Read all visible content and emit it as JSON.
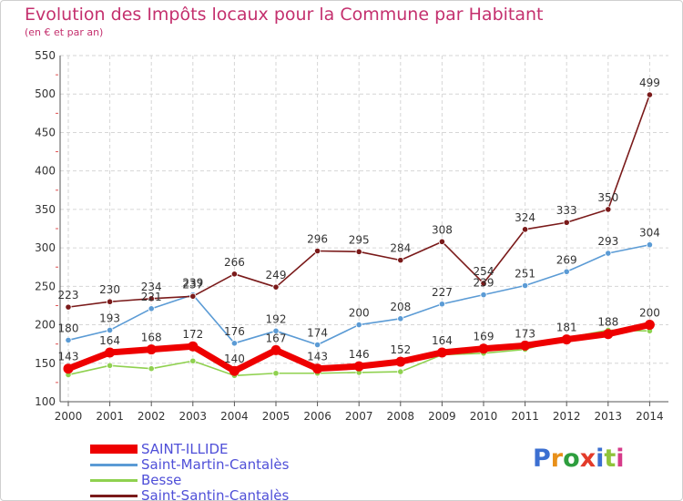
{
  "header": {
    "title": "Evolution des Impôts locaux pour la Commune par Habitant",
    "subtitle": "(en € et par an)"
  },
  "logo": {
    "text": "Proxiti",
    "colors": [
      "#3b6fd1",
      "#e8901a",
      "#2e9e3e",
      "#e33b2a",
      "#3b6fd1",
      "#8fc43b",
      "#d63b8a"
    ]
  },
  "chart_data": {
    "type": "line",
    "x": [
      2000,
      2001,
      2002,
      2003,
      2004,
      2005,
      2006,
      2007,
      2008,
      2009,
      2010,
      2011,
      2012,
      2013,
      2014
    ],
    "ylim": [
      100,
      550
    ],
    "yticks": [
      100,
      150,
      200,
      250,
      300,
      350,
      400,
      450,
      500,
      550
    ],
    "grid": true,
    "legend_position": "bottom-left",
    "series": [
      {
        "name": "SAINT-ILLIDE",
        "color": "#ee0000",
        "values": [
          143,
          164,
          168,
          172,
          140,
          167,
          143,
          146,
          152,
          164,
          169,
          173,
          181,
          188,
          200
        ],
        "labels_shown": true
      },
      {
        "name": "Saint-Martin-Cantalès",
        "color": "#5b9bd5",
        "values": [
          180,
          193,
          221,
          239,
          176,
          192,
          174,
          200,
          208,
          227,
          239,
          251,
          269,
          293,
          304
        ],
        "labels_shown": true
      },
      {
        "name": "Besse",
        "color": "#8fd14f",
        "values": [
          135,
          147,
          143,
          153,
          134,
          137,
          137,
          138,
          139,
          161,
          163,
          168,
          183,
          193,
          192
        ],
        "labels_shown": false
      },
      {
        "name": "Saint-Santin-Cantalès",
        "color": "#7a1a1a",
        "values": [
          223,
          230,
          234,
          237,
          266,
          249,
          296,
          295,
          284,
          308,
          254,
          324,
          333,
          350,
          499
        ],
        "labels_shown": true
      }
    ]
  }
}
